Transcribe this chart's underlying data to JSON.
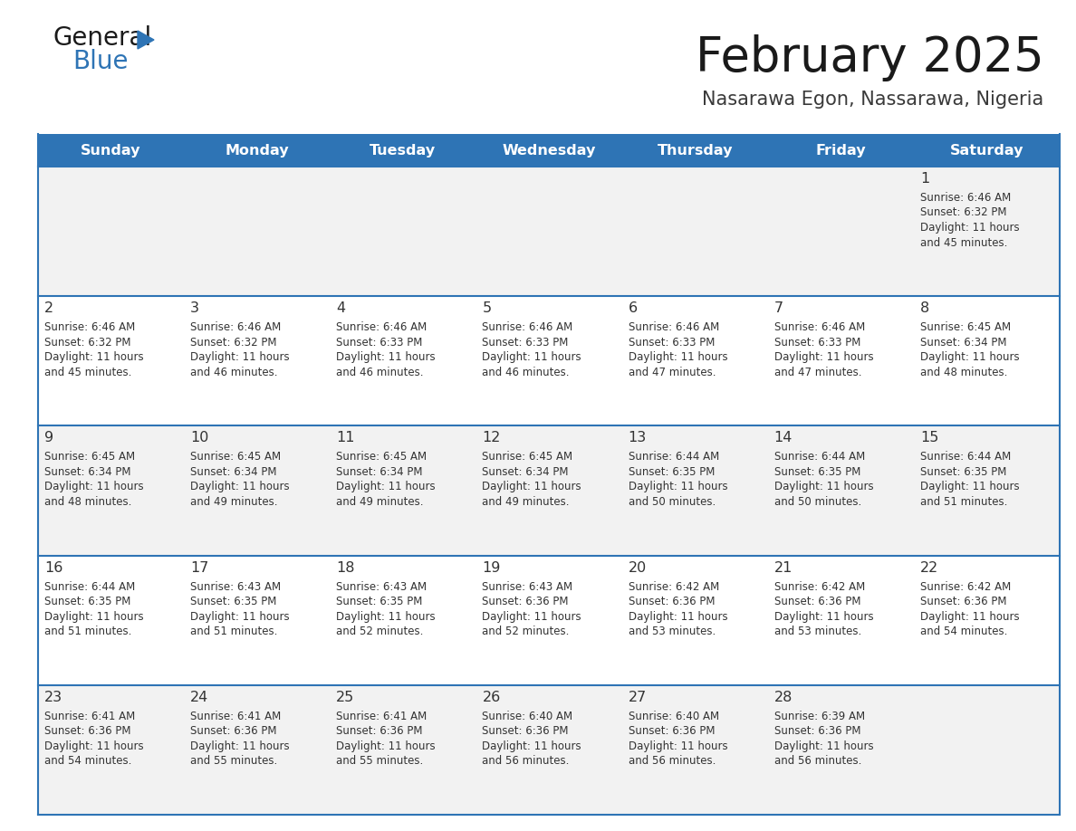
{
  "title": "February 2025",
  "subtitle": "Nasarawa Egon, Nassarawa, Nigeria",
  "header_bg": "#2e74b5",
  "header_text": "#ffffff",
  "row_bg_odd": "#f2f2f2",
  "row_bg_even": "#ffffff",
  "separator_color": "#2e74b5",
  "text_color": "#333333",
  "days_of_week": [
    "Sunday",
    "Monday",
    "Tuesday",
    "Wednesday",
    "Thursday",
    "Friday",
    "Saturday"
  ],
  "calendar_data": [
    [
      null,
      null,
      null,
      null,
      null,
      null,
      {
        "day": "1",
        "sunrise": "6:46 AM",
        "sunset": "6:32 PM",
        "daylight1": "11 hours",
        "daylight2": "and 45 minutes."
      }
    ],
    [
      {
        "day": "2",
        "sunrise": "6:46 AM",
        "sunset": "6:32 PM",
        "daylight1": "11 hours",
        "daylight2": "and 45 minutes."
      },
      {
        "day": "3",
        "sunrise": "6:46 AM",
        "sunset": "6:32 PM",
        "daylight1": "11 hours",
        "daylight2": "and 46 minutes."
      },
      {
        "day": "4",
        "sunrise": "6:46 AM",
        "sunset": "6:33 PM",
        "daylight1": "11 hours",
        "daylight2": "and 46 minutes."
      },
      {
        "day": "5",
        "sunrise": "6:46 AM",
        "sunset": "6:33 PM",
        "daylight1": "11 hours",
        "daylight2": "and 46 minutes."
      },
      {
        "day": "6",
        "sunrise": "6:46 AM",
        "sunset": "6:33 PM",
        "daylight1": "11 hours",
        "daylight2": "and 47 minutes."
      },
      {
        "day": "7",
        "sunrise": "6:46 AM",
        "sunset": "6:33 PM",
        "daylight1": "11 hours",
        "daylight2": "and 47 minutes."
      },
      {
        "day": "8",
        "sunrise": "6:45 AM",
        "sunset": "6:34 PM",
        "daylight1": "11 hours",
        "daylight2": "and 48 minutes."
      }
    ],
    [
      {
        "day": "9",
        "sunrise": "6:45 AM",
        "sunset": "6:34 PM",
        "daylight1": "11 hours",
        "daylight2": "and 48 minutes."
      },
      {
        "day": "10",
        "sunrise": "6:45 AM",
        "sunset": "6:34 PM",
        "daylight1": "11 hours",
        "daylight2": "and 49 minutes."
      },
      {
        "day": "11",
        "sunrise": "6:45 AM",
        "sunset": "6:34 PM",
        "daylight1": "11 hours",
        "daylight2": "and 49 minutes."
      },
      {
        "day": "12",
        "sunrise": "6:45 AM",
        "sunset": "6:34 PM",
        "daylight1": "11 hours",
        "daylight2": "and 49 minutes."
      },
      {
        "day": "13",
        "sunrise": "6:44 AM",
        "sunset": "6:35 PM",
        "daylight1": "11 hours",
        "daylight2": "and 50 minutes."
      },
      {
        "day": "14",
        "sunrise": "6:44 AM",
        "sunset": "6:35 PM",
        "daylight1": "11 hours",
        "daylight2": "and 50 minutes."
      },
      {
        "day": "15",
        "sunrise": "6:44 AM",
        "sunset": "6:35 PM",
        "daylight1": "11 hours",
        "daylight2": "and 51 minutes."
      }
    ],
    [
      {
        "day": "16",
        "sunrise": "6:44 AM",
        "sunset": "6:35 PM",
        "daylight1": "11 hours",
        "daylight2": "and 51 minutes."
      },
      {
        "day": "17",
        "sunrise": "6:43 AM",
        "sunset": "6:35 PM",
        "daylight1": "11 hours",
        "daylight2": "and 51 minutes."
      },
      {
        "day": "18",
        "sunrise": "6:43 AM",
        "sunset": "6:35 PM",
        "daylight1": "11 hours",
        "daylight2": "and 52 minutes."
      },
      {
        "day": "19",
        "sunrise": "6:43 AM",
        "sunset": "6:36 PM",
        "daylight1": "11 hours",
        "daylight2": "and 52 minutes."
      },
      {
        "day": "20",
        "sunrise": "6:42 AM",
        "sunset": "6:36 PM",
        "daylight1": "11 hours",
        "daylight2": "and 53 minutes."
      },
      {
        "day": "21",
        "sunrise": "6:42 AM",
        "sunset": "6:36 PM",
        "daylight1": "11 hours",
        "daylight2": "and 53 minutes."
      },
      {
        "day": "22",
        "sunrise": "6:42 AM",
        "sunset": "6:36 PM",
        "daylight1": "11 hours",
        "daylight2": "and 54 minutes."
      }
    ],
    [
      {
        "day": "23",
        "sunrise": "6:41 AM",
        "sunset": "6:36 PM",
        "daylight1": "11 hours",
        "daylight2": "and 54 minutes."
      },
      {
        "day": "24",
        "sunrise": "6:41 AM",
        "sunset": "6:36 PM",
        "daylight1": "11 hours",
        "daylight2": "and 55 minutes."
      },
      {
        "day": "25",
        "sunrise": "6:41 AM",
        "sunset": "6:36 PM",
        "daylight1": "11 hours",
        "daylight2": "and 55 minutes."
      },
      {
        "day": "26",
        "sunrise": "6:40 AM",
        "sunset": "6:36 PM",
        "daylight1": "11 hours",
        "daylight2": "and 56 minutes."
      },
      {
        "day": "27",
        "sunrise": "6:40 AM",
        "sunset": "6:36 PM",
        "daylight1": "11 hours",
        "daylight2": "and 56 minutes."
      },
      {
        "day": "28",
        "sunrise": "6:39 AM",
        "sunset": "6:36 PM",
        "daylight1": "11 hours",
        "daylight2": "and 56 minutes."
      },
      null
    ]
  ]
}
